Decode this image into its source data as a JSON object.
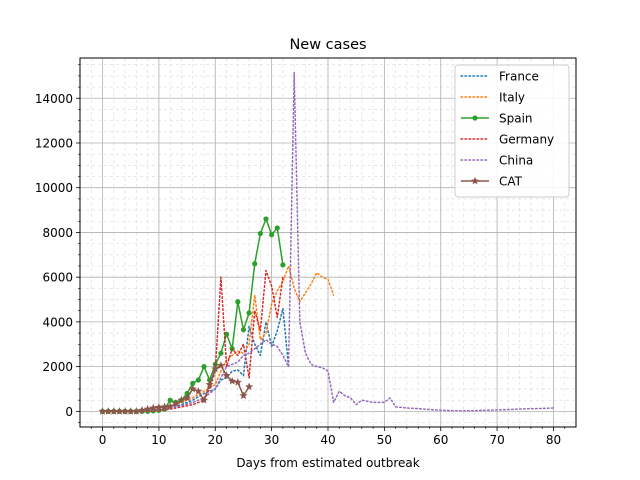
{
  "chart_data": {
    "type": "line",
    "title": "New cases",
    "xlabel": "Days from estimated outbreak",
    "ylabel": "",
    "xlim": [
      -4,
      84
    ],
    "ylim": [
      -700,
      15800
    ],
    "xticks": [
      0,
      10,
      20,
      30,
      40,
      50,
      60,
      70,
      80
    ],
    "yticks": [
      0,
      2000,
      4000,
      6000,
      8000,
      10000,
      12000,
      14000
    ],
    "grid": {
      "major": true,
      "minor": true
    },
    "legend_position": "top-right",
    "series": [
      {
        "name": "France",
        "color": "#1f77b4",
        "style": "dotted",
        "marker": "none",
        "x": [
          0,
          2,
          4,
          6,
          8,
          10,
          12,
          14,
          16,
          18,
          20,
          21,
          22,
          23,
          24,
          25,
          26,
          27,
          28,
          29,
          30,
          31,
          32,
          33
        ],
        "y": [
          0,
          0,
          10,
          20,
          40,
          80,
          150,
          300,
          500,
          800,
          1000,
          1400,
          1500,
          1800,
          1850,
          1600,
          3800,
          3000,
          2500,
          4000,
          2900,
          3600,
          4600,
          2000
        ]
      },
      {
        "name": "Italy",
        "color": "#ff7f0e",
        "style": "dotted",
        "marker": "none",
        "x": [
          0,
          2,
          4,
          6,
          8,
          10,
          12,
          14,
          16,
          18,
          20,
          21,
          22,
          23,
          24,
          25,
          26,
          27,
          28,
          29,
          30,
          31,
          32,
          33,
          34,
          35,
          36,
          37,
          38,
          39,
          40,
          41
        ],
        "y": [
          0,
          0,
          0,
          0,
          40,
          100,
          200,
          400,
          600,
          900,
          1200,
          1800,
          2300,
          2500,
          2700,
          2600,
          3000,
          5200,
          3200,
          3500,
          4800,
          5400,
          5800,
          6500,
          5500,
          4900,
          5300,
          5700,
          6200,
          6000,
          5900,
          5200
        ]
      },
      {
        "name": "Spain",
        "color": "#2ca02c",
        "style": "solid",
        "marker": "circle",
        "x": [
          0,
          1,
          2,
          3,
          4,
          5,
          6,
          7,
          8,
          9,
          10,
          11,
          12,
          13,
          14,
          15,
          16,
          17,
          18,
          19,
          20,
          21,
          22,
          23,
          24,
          25,
          26,
          27,
          28,
          29,
          30,
          31,
          32
        ],
        "y": [
          0,
          0,
          0,
          0,
          0,
          0,
          0,
          0,
          0,
          20,
          50,
          100,
          500,
          400,
          500,
          800,
          1250,
          1400,
          2000,
          1400,
          2100,
          2600,
          3450,
          2800,
          4900,
          3650,
          4400,
          6600,
          7950,
          8600,
          7900,
          8200,
          6550
        ]
      },
      {
        "name": "Germany",
        "color": "#d62728",
        "style": "dotted",
        "marker": "none",
        "x": [
          0,
          2,
          4,
          6,
          8,
          10,
          12,
          14,
          16,
          18,
          19,
          20,
          21,
          22,
          23,
          24,
          25,
          26,
          27,
          28,
          29,
          30,
          31,
          32
        ],
        "y": [
          0,
          0,
          0,
          0,
          0,
          30,
          100,
          200,
          300,
          500,
          1000,
          1800,
          6000,
          2000,
          2800,
          2500,
          3000,
          1500,
          4500,
          3600,
          6300,
          5600,
          4200,
          6000
        ]
      },
      {
        "name": "China",
        "color": "#9467bd",
        "style": "dotted",
        "marker": "none",
        "x": [
          0,
          2,
          4,
          6,
          8,
          10,
          12,
          14,
          16,
          18,
          20,
          22,
          24,
          25,
          26,
          27,
          28,
          29,
          30,
          31,
          32,
          33,
          34,
          35,
          36,
          37,
          38,
          39,
          40,
          41,
          42,
          43,
          44,
          45,
          46,
          48,
          50,
          51,
          52,
          54,
          56,
          58,
          60,
          62,
          64,
          66,
          68,
          70,
          72,
          74,
          76,
          78,
          80
        ],
        "y": [
          0,
          0,
          0,
          10,
          30,
          80,
          150,
          250,
          400,
          600,
          1000,
          2000,
          2200,
          2500,
          2600,
          2800,
          3000,
          3200,
          3000,
          2900,
          2500,
          2000,
          15150,
          4000,
          2600,
          2100,
          2000,
          1950,
          1800,
          400,
          900,
          700,
          600,
          300,
          500,
          400,
          400,
          600,
          200,
          150,
          120,
          80,
          50,
          30,
          20,
          30,
          50,
          60,
          80,
          100,
          120,
          130,
          150
        ]
      },
      {
        "name": "CAT",
        "color": "#8c564b",
        "style": "solid",
        "marker": "star",
        "x": [
          0,
          1,
          2,
          3,
          4,
          5,
          6,
          7,
          8,
          9,
          10,
          11,
          12,
          13,
          14,
          15,
          16,
          17,
          18,
          19,
          20,
          21,
          22,
          23,
          24,
          25,
          26
        ],
        "y": [
          0,
          0,
          0,
          0,
          0,
          0,
          0,
          50,
          100,
          150,
          180,
          200,
          220,
          350,
          500,
          600,
          1000,
          900,
          500,
          1200,
          1900,
          2050,
          1600,
          1350,
          1300,
          700,
          1100
        ]
      }
    ]
  }
}
